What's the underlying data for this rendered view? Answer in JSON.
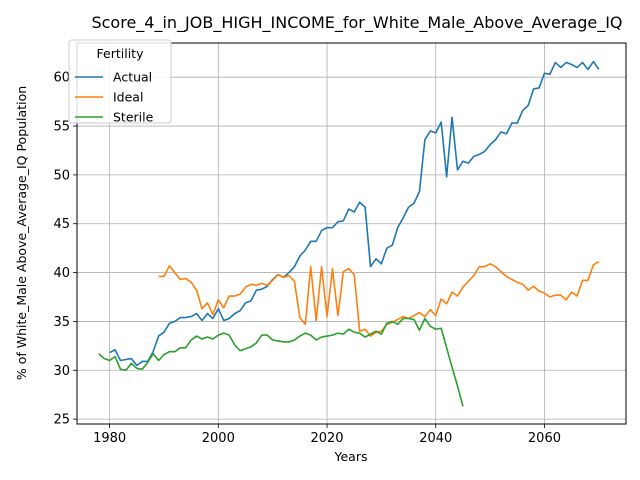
{
  "chart_data": {
    "type": "line",
    "title": "Score_4_in_JOB_HIGH_INCOME_for_White_Male_Above_Average_IQ",
    "xlabel": "Years",
    "ylabel": "% of White_Male Above_Average_IQ Population",
    "xlim": [
      1974,
      2075
    ],
    "ylim": [
      24.5,
      63.5
    ],
    "xticks": [
      1980,
      2000,
      2020,
      2040,
      2060
    ],
    "yticks": [
      25,
      30,
      35,
      40,
      45,
      50,
      55,
      60
    ],
    "grid": true,
    "legend": {
      "title": "Fertility",
      "placement": "top-left"
    },
    "series": [
      {
        "name": "Actual",
        "color": "#1f77b4",
        "x": [
          1980,
          1981,
          1982,
          1983,
          1984,
          1985,
          1986,
          1987,
          1988,
          1989,
          1990,
          1991,
          1992,
          1993,
          1994,
          1995,
          1996,
          1997,
          1998,
          1999,
          2000,
          2001,
          2002,
          2003,
          2004,
          2005,
          2006,
          2007,
          2008,
          2009,
          2010,
          2011,
          2012,
          2013,
          2014,
          2015,
          2016,
          2017,
          2018,
          2019,
          2020,
          2021,
          2022,
          2023,
          2024,
          2025,
          2026,
          2027,
          2028,
          2029,
          2030,
          2031,
          2032,
          2033,
          2034,
          2035,
          2036,
          2037,
          2038,
          2039,
          2040,
          2041,
          2042,
          2043,
          2044,
          2045,
          2046,
          2047,
          2048,
          2049,
          2050,
          2051,
          2052,
          2053,
          2054,
          2055,
          2056,
          2057,
          2058,
          2059,
          2060,
          2061,
          2062,
          2063,
          2064,
          2065,
          2066,
          2067,
          2068,
          2069,
          2070
        ],
        "values": [
          31.8,
          32.1,
          31.0,
          31.1,
          31.2,
          30.5,
          30.9,
          30.9,
          31.9,
          33.5,
          33.9,
          34.8,
          35.0,
          35.4,
          35.4,
          35.5,
          35.8,
          35.1,
          35.8,
          35.3,
          36.3,
          35.1,
          35.3,
          35.8,
          36.1,
          36.9,
          37.1,
          38.2,
          38.3,
          38.6,
          39.3,
          39.8,
          39.5,
          40.0,
          40.6,
          41.7,
          42.3,
          43.2,
          43.2,
          44.3,
          44.6,
          44.6,
          45.2,
          45.3,
          46.5,
          46.2,
          47.2,
          46.7,
          40.6,
          41.4,
          40.9,
          42.5,
          42.8,
          44.6,
          45.6,
          46.7,
          47.1,
          48.3,
          53.6,
          54.5,
          54.3,
          55.4,
          49.8,
          55.9,
          50.5,
          51.4,
          51.2,
          51.9,
          52.1,
          52.4,
          53.1,
          53.6,
          54.4,
          54.2,
          55.3,
          55.3,
          56.6,
          57.1,
          58.8,
          58.9,
          60.4,
          60.3,
          61.5,
          61.0,
          61.5,
          61.3,
          61.0,
          61.5,
          60.8,
          61.6,
          60.8
        ]
      },
      {
        "name": "Ideal",
        "color": "#ff7f0e",
        "x": [
          1989,
          1990,
          1991,
          1992,
          1993,
          1994,
          1995,
          1996,
          1997,
          1998,
          1999,
          2000,
          2001,
          2002,
          2003,
          2004,
          2005,
          2006,
          2007,
          2008,
          2009,
          2010,
          2011,
          2012,
          2013,
          2014,
          2015,
          2016,
          2017,
          2018,
          2019,
          2020,
          2021,
          2022,
          2023,
          2024,
          2025,
          2026,
          2027,
          2028,
          2029,
          2030,
          2031,
          2032,
          2033,
          2034,
          2035,
          2036,
          2037,
          2038,
          2039,
          2040,
          2041,
          2042,
          2043,
          2044,
          2045,
          2046,
          2047,
          2048,
          2049,
          2050,
          2051,
          2052,
          2053,
          2054,
          2055,
          2056,
          2057,
          2058,
          2059,
          2060,
          2061,
          2062,
          2063,
          2064,
          2065,
          2066,
          2067,
          2068,
          2069,
          2070
        ],
        "values": [
          39.6,
          39.6,
          40.7,
          40.0,
          39.3,
          39.4,
          39.0,
          38.2,
          36.3,
          36.9,
          35.7,
          37.2,
          36.4,
          37.6,
          37.6,
          37.8,
          38.5,
          38.8,
          38.7,
          38.9,
          38.7,
          39.2,
          39.8,
          39.5,
          39.7,
          39.1,
          35.4,
          34.7,
          40.6,
          35.1,
          40.6,
          35.5,
          40.4,
          35.6,
          40.1,
          40.4,
          39.8,
          34.0,
          34.2,
          33.5,
          33.9,
          34.0,
          34.7,
          34.9,
          35.2,
          35.5,
          35.3,
          35.6,
          35.9,
          35.5,
          36.2,
          35.6,
          37.3,
          36.8,
          38.0,
          37.6,
          38.5,
          39.1,
          39.7,
          40.6,
          40.6,
          40.9,
          40.6,
          40.1,
          39.6,
          39.3,
          39.0,
          38.8,
          38.2,
          38.6,
          38.1,
          37.9,
          37.5,
          37.7,
          37.7,
          37.2,
          38.0,
          37.6,
          39.2,
          39.2,
          40.8,
          41.1
        ]
      },
      {
        "name": "Sterile",
        "color": "#2ca02c",
        "x": [
          1978,
          1979,
          1980,
          1981,
          1982,
          1983,
          1984,
          1985,
          1986,
          1987,
          1988,
          1989,
          1990,
          1991,
          1992,
          1993,
          1994,
          1995,
          1996,
          1997,
          1998,
          1999,
          2000,
          2001,
          2002,
          2003,
          2004,
          2005,
          2006,
          2007,
          2008,
          2009,
          2010,
          2011,
          2012,
          2013,
          2014,
          2015,
          2016,
          2017,
          2018,
          2019,
          2020,
          2021,
          2022,
          2023,
          2024,
          2025,
          2026,
          2027,
          2028,
          2029,
          2030,
          2031,
          2032,
          2033,
          2034,
          2035,
          2036,
          2037,
          2038,
          2039,
          2040,
          2041,
          2042,
          2043,
          2044,
          2045,
          2046
        ],
        "values": [
          31.7,
          31.2,
          31.0,
          31.4,
          30.1,
          30.0,
          30.7,
          30.2,
          30.1,
          30.8,
          31.7,
          31.0,
          31.6,
          31.9,
          31.9,
          32.3,
          32.3,
          33.1,
          33.5,
          33.2,
          33.4,
          33.2,
          33.6,
          33.8,
          33.6,
          32.6,
          32.0,
          32.2,
          32.4,
          32.8,
          33.6,
          33.6,
          33.1,
          33.0,
          32.9,
          32.9,
          33.1,
          33.5,
          33.8,
          33.6,
          33.1,
          33.4,
          33.5,
          33.6,
          33.8,
          33.7,
          34.2,
          33.9,
          33.8,
          33.4,
          33.7,
          34.0,
          33.7,
          34.8,
          35.0,
          34.7,
          35.3,
          35.3,
          35.2,
          34.1,
          35.3,
          34.5,
          34.2,
          34.3,
          32.3,
          30.3,
          28.4,
          26.3,
          null
        ]
      }
    ]
  }
}
